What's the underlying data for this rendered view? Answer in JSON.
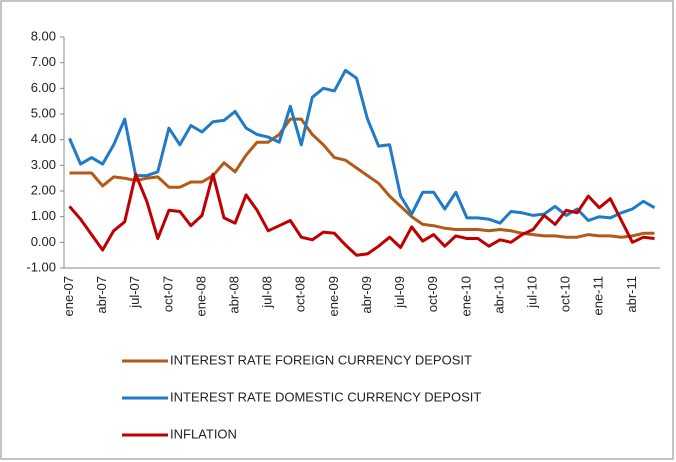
{
  "chart_data": {
    "type": "line",
    "categories": [
      "ene-07",
      null,
      null,
      "abr-07",
      null,
      null,
      "jul-07",
      null,
      null,
      "oct-07",
      null,
      null,
      "ene-08",
      null,
      null,
      "abr-08",
      null,
      null,
      "jul-08",
      null,
      null,
      "oct-08",
      null,
      null,
      "ene-09",
      null,
      null,
      "abr-09",
      null,
      null,
      "jul-09",
      null,
      null,
      "oct-09",
      null,
      null,
      "ene-10",
      null,
      null,
      "abr-10",
      null,
      null,
      "jul-10",
      null,
      null,
      "oct-10",
      null,
      null,
      "ene-11",
      null,
      null,
      "abr-11",
      null,
      null
    ],
    "series": [
      {
        "name": "INTEREST RATE FOREIGN CURRENCY DEPOSIT",
        "color": "#b35a16",
        "values": [
          2.7,
          2.7,
          2.7,
          2.2,
          2.55,
          2.5,
          2.4,
          2.5,
          2.55,
          2.15,
          2.15,
          2.35,
          2.35,
          2.6,
          3.1,
          2.75,
          3.4,
          3.9,
          3.9,
          4.2,
          4.8,
          4.8,
          4.2,
          3.8,
          3.3,
          3.2,
          2.9,
          2.6,
          2.3,
          1.8,
          1.4,
          1.0,
          0.7,
          0.65,
          0.55,
          0.5,
          0.5,
          0.5,
          0.45,
          0.5,
          0.45,
          0.35,
          0.3,
          0.25,
          0.25,
          0.2,
          0.2,
          0.3,
          0.25,
          0.25,
          0.2,
          0.25,
          0.35,
          0.35
        ]
      },
      {
        "name": "INTEREST RATE DOMESTIC CURRENCY DEPOSIT",
        "color": "#1f7bc8",
        "values": [
          4.05,
          3.05,
          3.3,
          3.05,
          3.8,
          4.8,
          2.6,
          2.6,
          2.75,
          4.45,
          3.8,
          4.55,
          4.3,
          4.7,
          4.75,
          5.1,
          4.45,
          4.2,
          4.1,
          3.9,
          5.3,
          3.8,
          5.65,
          6.0,
          5.9,
          6.7,
          6.4,
          4.8,
          3.75,
          3.8,
          1.8,
          1.1,
          1.95,
          1.95,
          1.3,
          1.95,
          0.95,
          0.95,
          0.9,
          0.75,
          1.2,
          1.15,
          1.05,
          1.1,
          1.4,
          1.05,
          1.3,
          0.85,
          1.0,
          0.95,
          1.15,
          1.3,
          1.6,
          1.35
        ]
      },
      {
        "name": "INFLATION",
        "color": "#c00000",
        "values": [
          1.4,
          0.9,
          0.3,
          -0.3,
          0.45,
          0.8,
          2.65,
          1.6,
          0.15,
          1.25,
          1.2,
          0.65,
          1.05,
          2.65,
          0.95,
          0.75,
          1.85,
          1.25,
          0.45,
          0.65,
          0.85,
          0.2,
          0.1,
          0.4,
          0.35,
          -0.1,
          -0.5,
          -0.45,
          -0.15,
          0.2,
          -0.2,
          0.6,
          0.05,
          0.3,
          -0.15,
          0.25,
          0.15,
          0.15,
          -0.15,
          0.1,
          0.0,
          0.3,
          0.5,
          1.05,
          0.7,
          1.25,
          1.15,
          1.8,
          1.35,
          1.7,
          0.85,
          0.0,
          0.2,
          0.15
        ]
      }
    ],
    "ylim": [
      -1,
      8
    ],
    "yticks": [
      {
        "value": -1,
        "label": "-1.00"
      },
      {
        "value": 0,
        "label": "0.00"
      },
      {
        "value": 1,
        "label": "1.00"
      },
      {
        "value": 2,
        "label": "2.00"
      },
      {
        "value": 3,
        "label": "3.00"
      },
      {
        "value": 4,
        "label": "4.00"
      },
      {
        "value": 5,
        "label": "5.00"
      },
      {
        "value": 6,
        "label": "6.00"
      },
      {
        "value": 7,
        "label": "7.00"
      },
      {
        "value": 8,
        "label": "8.00"
      }
    ],
    "legend": "bottom"
  }
}
